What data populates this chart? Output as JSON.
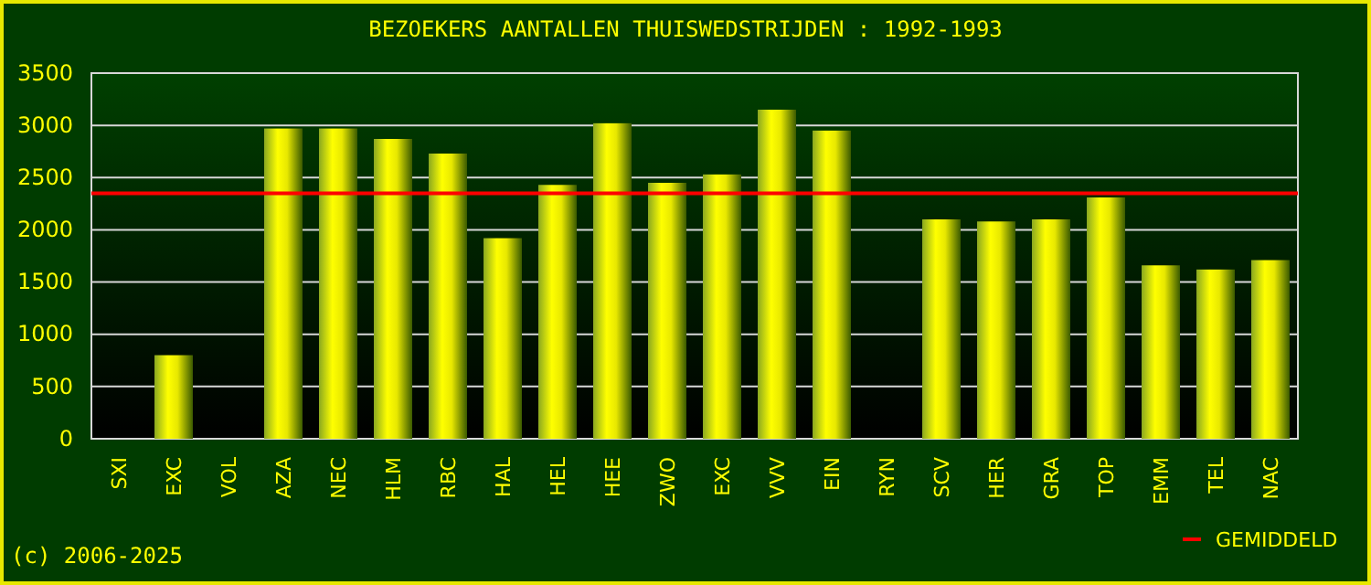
{
  "chart_data": {
    "type": "bar",
    "title": "BEZOEKERS AANTALLEN THUISWEDSTRIJDEN : 1992-1993",
    "categories": [
      "SXI",
      "EXC",
      "VOL",
      "AZA",
      "NEC",
      "HLM",
      "RBC",
      "HAL",
      "HEL",
      "HEE",
      "ZWO",
      "EXC",
      "VVV",
      "EIN",
      "RYN",
      "SCV",
      "HER",
      "GRA",
      "TOP",
      "EMM",
      "TEL",
      "NAC"
    ],
    "values": [
      null,
      800,
      null,
      2970,
      2970,
      2870,
      2730,
      1920,
      2430,
      3020,
      2450,
      2530,
      3150,
      2950,
      null,
      2100,
      2080,
      2100,
      2310,
      1660,
      1620,
      1710
    ],
    "color": "#ffff00",
    "ylim": [
      0,
      3500
    ],
    "yticks": [
      0,
      500,
      1000,
      1500,
      2000,
      2500,
      3000,
      3500
    ],
    "grid": "y",
    "ref_lines": [
      {
        "axis": "y",
        "value": 2350,
        "label": "GEMIDDELD",
        "color": "#ff0000"
      }
    ],
    "annotations": [
      "(c) 2006-2025"
    ]
  }
}
